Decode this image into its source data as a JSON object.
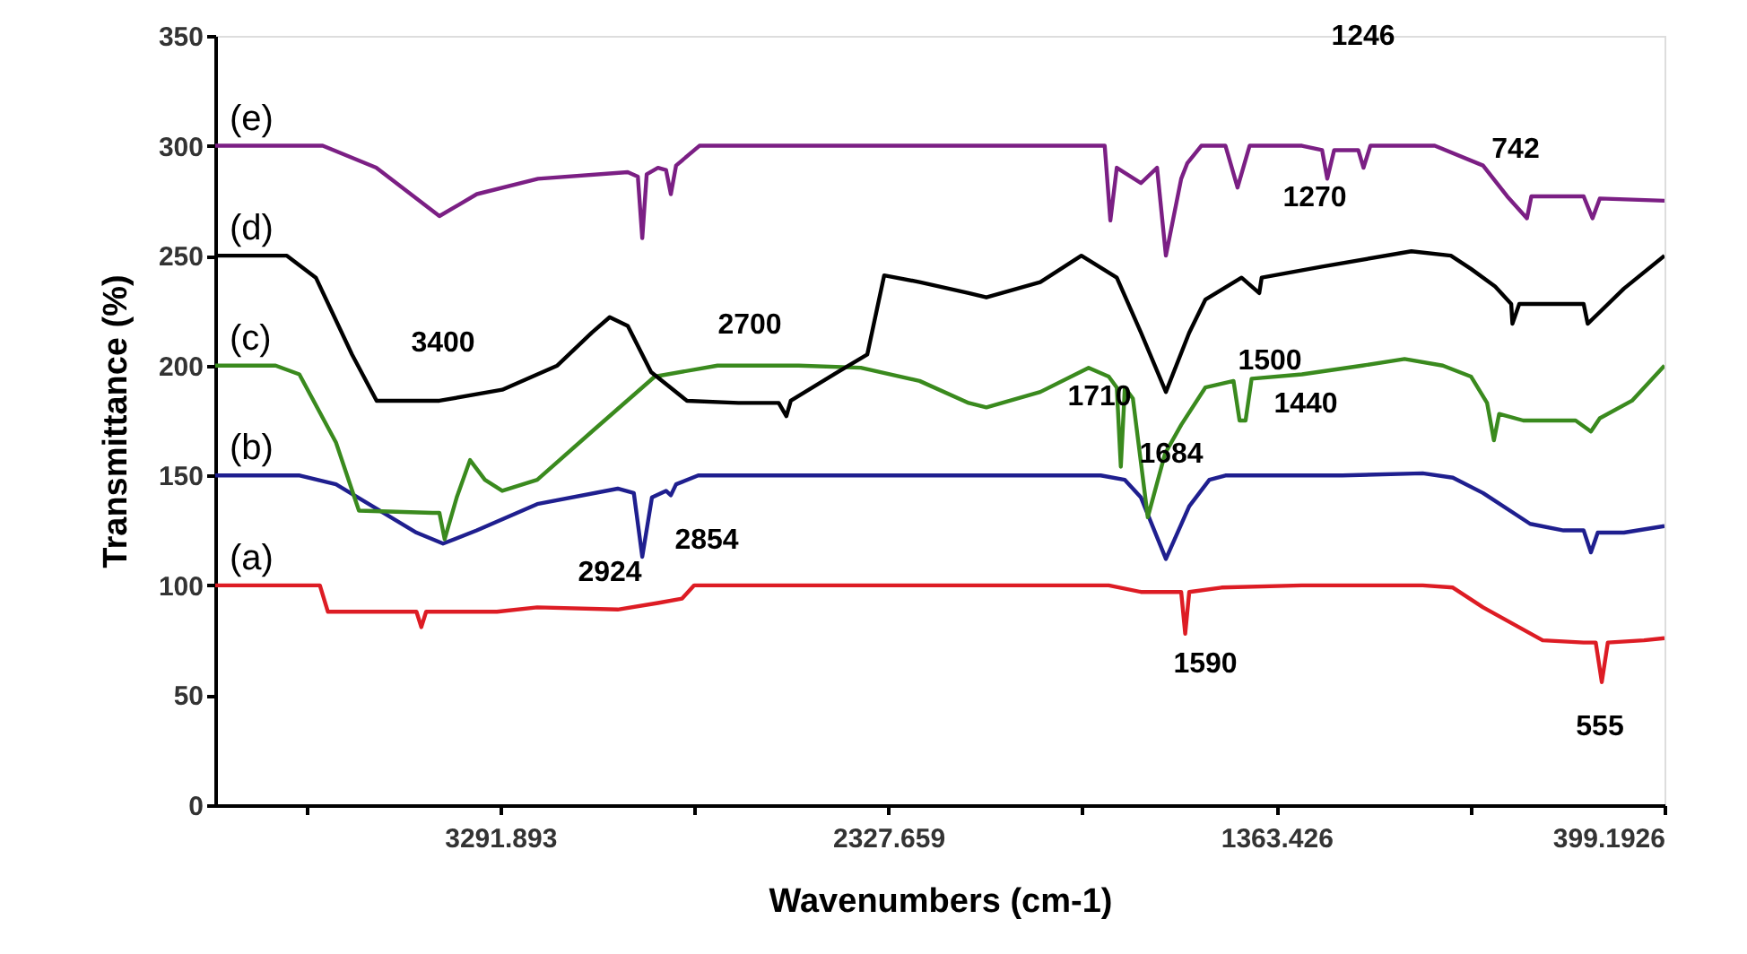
{
  "chart_data": {
    "type": "line",
    "xlabel": "Wavenumbers (cm-1)",
    "ylabel": "Transmittance (%)",
    "xlim": [
      4000,
      399.1926
    ],
    "xticks": [
      {
        "value": 3774.01,
        "label": null
      },
      3291.893,
      {
        "value": 2809.776,
        "label": null
      },
      2327.659,
      {
        "value": 1845.543,
        "label": null
      },
      1363.426,
      {
        "value": 881.309,
        "label": null
      },
      399.1926
    ],
    "ylim": [
      0,
      350
    ],
    "yticks": [
      0,
      50,
      100,
      150,
      200,
      250,
      300,
      350
    ],
    "grid": false,
    "marker": "none",
    "line_style": "solid",
    "series": [
      {
        "name": "(a)",
        "color": "#dd1c24",
        "x": [
          4000,
          3740,
          3720,
          3500,
          3488,
          3476,
          3300,
          3200,
          3000,
          2900,
          2840,
          2810,
          2400,
          2000,
          1780,
          1700,
          1600,
          1590,
          1580,
          1500,
          1300,
          1000,
          925,
          850,
          702,
          600,
          570,
          555,
          540,
          450,
          399.1926
        ],
        "values": [
          100,
          100,
          88,
          88,
          81,
          88,
          88,
          90,
          89,
          92,
          94,
          100,
          100,
          100,
          100,
          97,
          97,
          78,
          97,
          99,
          100,
          100,
          99,
          90,
          75,
          74,
          74,
          56,
          74,
          75,
          76
        ]
      },
      {
        "name": "(b)",
        "color": "#1f1f8f",
        "x": [
          4000,
          3790,
          3700,
          3600,
          3500,
          3434,
          3350,
          3200,
          3000,
          2960,
          2939,
          2915,
          2880,
          2868,
          2855,
          2800,
          2400,
          2000,
          1800,
          1740,
          1700,
          1638,
          1580,
          1530,
          1490,
          1200,
          1000,
          925,
          850,
          733,
          650,
          600,
          582,
          565,
          500,
          399.1926
        ],
        "values": [
          150,
          150,
          146,
          135,
          124,
          119,
          125,
          137,
          144,
          142,
          113,
          140,
          143,
          141,
          146,
          150,
          150,
          150,
          150,
          148,
          140,
          112,
          136,
          148,
          150,
          150,
          151,
          149,
          142,
          128,
          125,
          125,
          115,
          124,
          124,
          127
        ]
      },
      {
        "name": "(c)",
        "color": "#3a8a1e",
        "x": [
          4000,
          3850,
          3791,
          3700,
          3643,
          3460,
          3443,
          3430,
          3400,
          3367,
          3330,
          3287,
          3200,
          3064,
          2908,
          2752,
          2550,
          2396,
          2250,
          2128,
          2084,
          1950,
          1830,
          1780,
          1760,
          1750,
          1740,
          1720,
          1683,
          1640,
          1600,
          1540,
          1470,
          1455,
          1440,
          1425,
          1300,
          1150,
          1045,
          950,
          880,
          840,
          823,
          810,
          750,
          620,
          582,
          560,
          480,
          399.1926
        ],
        "values": [
          200,
          200,
          196,
          165,
          134,
          133,
          133,
          121,
          140,
          157,
          148,
          143,
          148,
          170,
          195,
          200,
          200,
          199,
          193,
          183,
          181,
          188,
          199,
          195,
          190,
          154,
          190,
          185,
          131,
          160,
          173,
          190,
          193,
          175,
          175,
          194,
          196,
          200,
          203,
          200,
          195,
          183,
          166,
          178,
          175,
          175,
          170,
          176,
          184,
          200
        ]
      },
      {
        "name": "(d)",
        "color": "#000000",
        "x": [
          4000,
          3822,
          3750,
          3660,
          3599,
          3443,
          3287,
          3150,
          3064,
          3020,
          2975,
          2917,
          2828,
          2700,
          2600,
          2581,
          2570,
          2454,
          2380,
          2338,
          2250,
          2128,
          2084,
          1950,
          1848,
          1760,
          1700,
          1638,
          1580,
          1540,
          1450,
          1406,
          1400,
          1250,
          1028,
          930,
          880,
          820,
          780,
          777,
          760,
          650,
          600,
          590,
          500,
          399.1926
        ],
        "values": [
          250,
          250,
          240,
          205,
          184,
          184,
          189,
          200,
          215,
          222,
          218,
          197,
          184,
          183,
          183,
          177,
          184,
          197,
          205,
          241,
          238,
          233,
          231,
          238,
          250,
          240,
          215,
          188,
          215,
          230,
          240,
          233,
          240,
          245,
          252,
          250,
          244,
          236,
          228,
          219,
          228,
          228,
          228,
          219,
          235,
          250
        ]
      },
      {
        "name": "(e)",
        "color": "#7b1f84",
        "x": [
          4000,
          3733,
          3600,
          3443,
          3350,
          3198,
          2975,
          2950,
          2939,
          2928,
          2900,
          2880,
          2868,
          2855,
          2797,
          2000,
          1790,
          1776,
          1760,
          1700,
          1660,
          1638,
          1600,
          1585,
          1550,
          1490,
          1460,
          1430,
          1300,
          1250,
          1237,
          1220,
          1160,
          1147,
          1130,
          970,
          850,
          790,
          741,
          730,
          600,
          578,
          560,
          399.1926
        ],
        "values": [
          300,
          300,
          290,
          268,
          278,
          285,
          288,
          286,
          258,
          287,
          290,
          289,
          278,
          291,
          300,
          300,
          300,
          266,
          290,
          283,
          290,
          250,
          285,
          292,
          300,
          300,
          281,
          300,
          300,
          298,
          285,
          298,
          298,
          290,
          300,
          300,
          291,
          277,
          267,
          277,
          277,
          267,
          276,
          275
        ]
      }
    ],
    "annotations": [
      "3400",
      "2700",
      "2924",
      "2854",
      "1710",
      "1684",
      "1500",
      "1440",
      "1590",
      "555",
      "1246",
      "1270",
      "742"
    ]
  }
}
